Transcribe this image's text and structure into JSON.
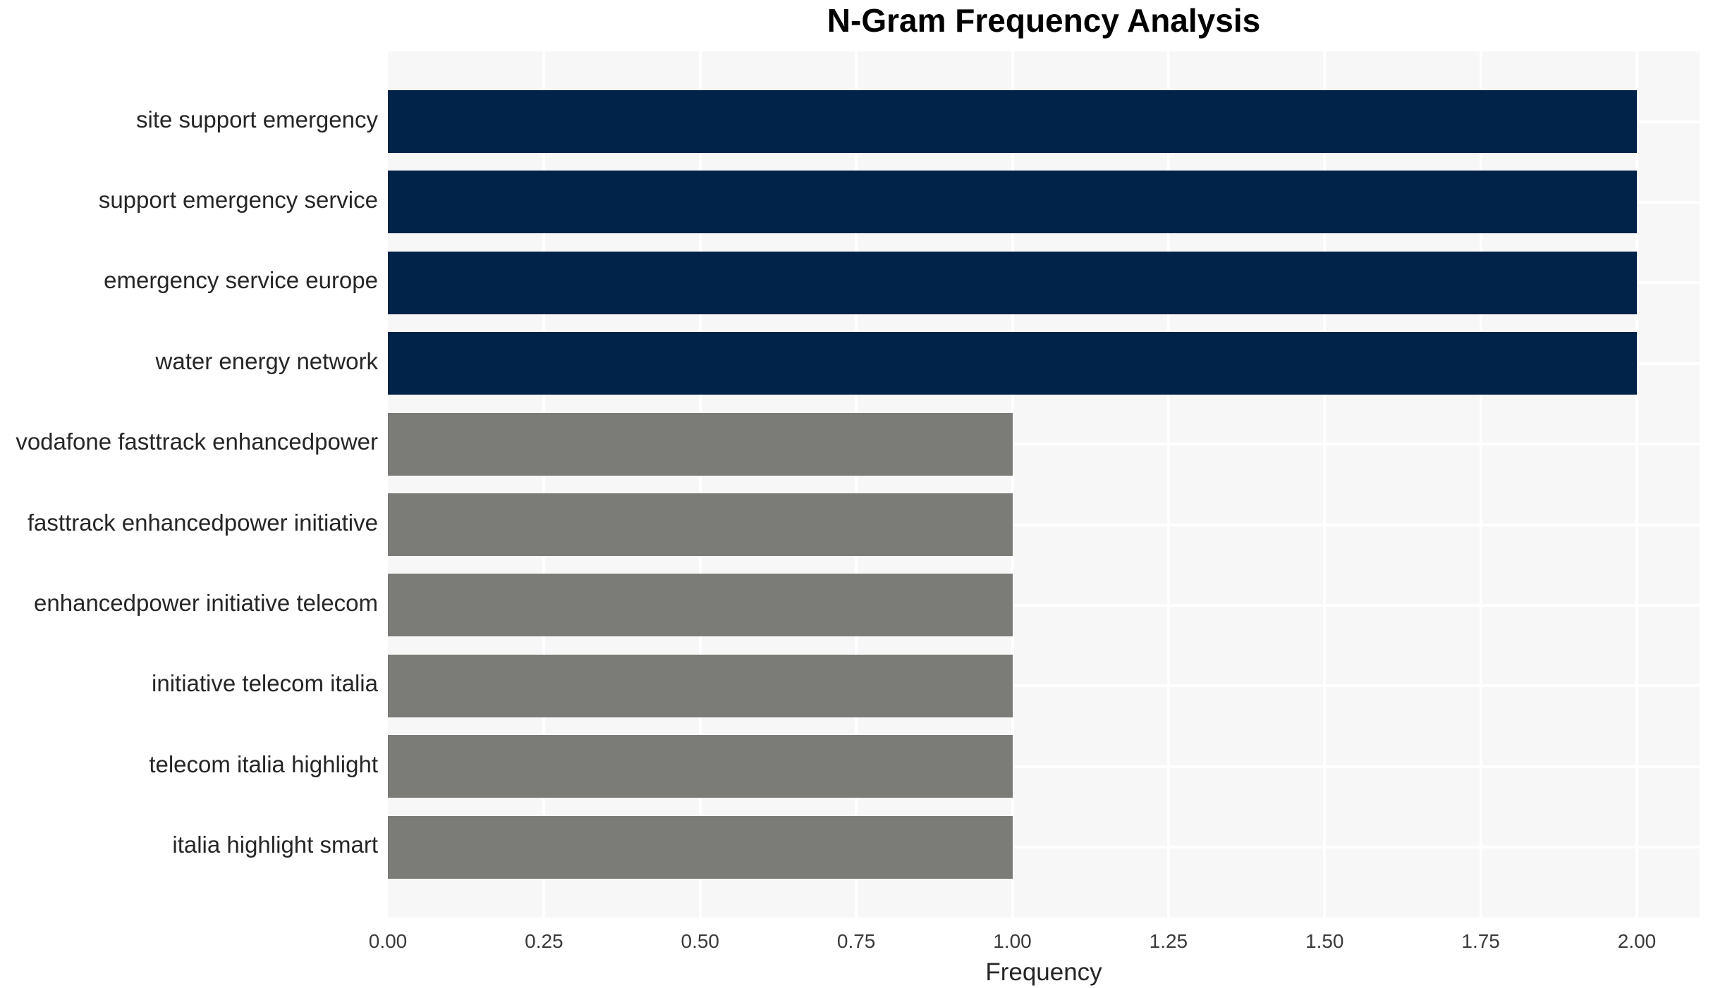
{
  "chart_data": {
    "type": "bar",
    "orientation": "horizontal",
    "title": "N-Gram Frequency Analysis",
    "xlabel": "Frequency",
    "ylabel": "",
    "categories": [
      "site support emergency",
      "support emergency service",
      "emergency service europe",
      "water energy network",
      "vodafone fasttrack enhancedpower",
      "fasttrack enhancedpower initiative",
      "enhancedpower initiative telecom",
      "initiative telecom italia",
      "telecom italia highlight",
      "italia highlight smart"
    ],
    "values": [
      2,
      2,
      2,
      2,
      1,
      1,
      1,
      1,
      1,
      1
    ],
    "bar_colors": [
      "#012249",
      "#012249",
      "#012249",
      "#012249",
      "#7b7b77",
      "#7b7b77",
      "#7b7b77",
      "#7b7b77",
      "#7b7b77",
      "#7b7b77"
    ],
    "xlim": [
      0,
      2.1
    ],
    "xticks": [
      {
        "label": "0.00",
        "value": 0.0
      },
      {
        "label": "0.25",
        "value": 0.25
      },
      {
        "label": "0.50",
        "value": 0.5
      },
      {
        "label": "0.75",
        "value": 0.75
      },
      {
        "label": "1.00",
        "value": 1.0
      },
      {
        "label": "1.25",
        "value": 1.25
      },
      {
        "label": "1.50",
        "value": 1.5
      },
      {
        "label": "1.75",
        "value": 1.75
      },
      {
        "label": "2.00",
        "value": 2.0
      }
    ],
    "grid": true,
    "legend": "none",
    "palette": {
      "bar_high": "#012249",
      "bar_low": "#7b7b77",
      "plot_background": "#f7f7f7",
      "grid_color": "#ffffff",
      "figure_background": "#ffffff",
      "title_color": "#000000",
      "label_color": "#262626"
    }
  }
}
